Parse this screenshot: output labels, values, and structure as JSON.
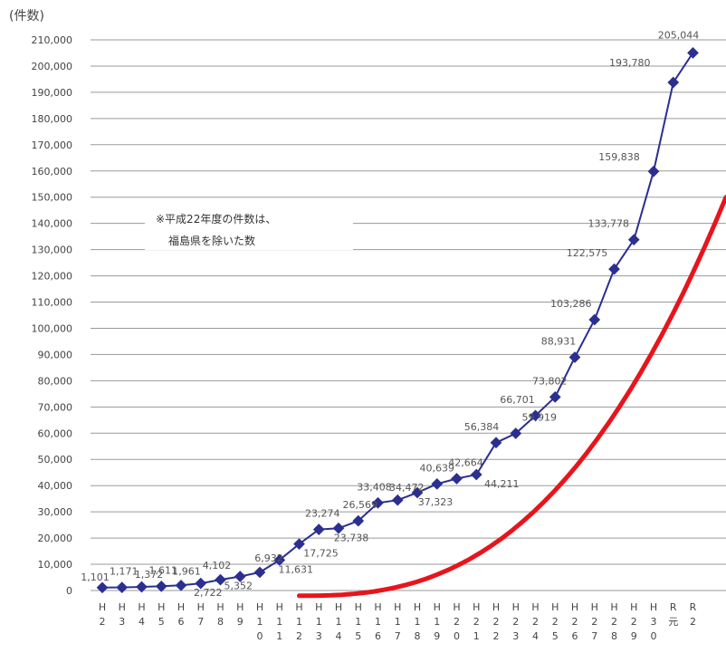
{
  "chart_data": {
    "type": "line",
    "ylabel": "(件数)",
    "ylim": [
      0,
      210000
    ],
    "yticks": [
      0,
      10000,
      20000,
      30000,
      40000,
      50000,
      60000,
      70000,
      80000,
      90000,
      100000,
      110000,
      120000,
      130000,
      140000,
      150000,
      160000,
      170000,
      180000,
      190000,
      200000,
      210000
    ],
    "ytick_labels": [
      "0",
      "10,000",
      "20,000",
      "30,000",
      "40,000",
      "50,000",
      "60,000",
      "70,000",
      "80,000",
      "90,000",
      "100,000",
      "110,000",
      "120,000",
      "130,000",
      "140,000",
      "150,000",
      "160,000",
      "170,000",
      "180,000",
      "190,000",
      "200,000",
      "210,000"
    ],
    "grid": true,
    "categories": [
      [
        "H",
        "2"
      ],
      [
        "H",
        "3"
      ],
      [
        "H",
        "4"
      ],
      [
        "H",
        "5"
      ],
      [
        "H",
        "6"
      ],
      [
        "H",
        "7"
      ],
      [
        "H",
        "8"
      ],
      [
        "H",
        "9"
      ],
      [
        "H",
        "1",
        "0"
      ],
      [
        "H",
        "1",
        "1"
      ],
      [
        "H",
        "1",
        "2"
      ],
      [
        "H",
        "1",
        "3"
      ],
      [
        "H",
        "1",
        "4"
      ],
      [
        "H",
        "1",
        "5"
      ],
      [
        "H",
        "1",
        "6"
      ],
      [
        "H",
        "1",
        "7"
      ],
      [
        "H",
        "1",
        "8"
      ],
      [
        "H",
        "1",
        "9"
      ],
      [
        "H",
        "2",
        "0"
      ],
      [
        "H",
        "2",
        "1"
      ],
      [
        "H",
        "2",
        "2"
      ],
      [
        "H",
        "2",
        "3"
      ],
      [
        "H",
        "2",
        "4"
      ],
      [
        "H",
        "2",
        "5"
      ],
      [
        "H",
        "2",
        "6"
      ],
      [
        "H",
        "2",
        "7"
      ],
      [
        "H",
        "2",
        "8"
      ],
      [
        "H",
        "2",
        "9"
      ],
      [
        "H",
        "3",
        "0"
      ],
      [
        "R",
        "元"
      ],
      [
        "R",
        "2"
      ]
    ],
    "series": [
      {
        "color": "#2b2f8f",
        "values": [
          1101,
          1171,
          1372,
          1611,
          1961,
          2722,
          4102,
          5352,
          6932,
          11631,
          17725,
          23274,
          23738,
          26569,
          33408,
          34472,
          37323,
          40639,
          42664,
          44211,
          56384,
          59919,
          66701,
          73802,
          88931,
          103286,
          122575,
          133778,
          159838,
          193780,
          205044
        ],
        "labels": [
          "1,101",
          "1,171",
          "1,372",
          "1,611",
          "1,961",
          "2,722",
          "4,102",
          "5,352",
          "6,932",
          "11,631",
          "17,725",
          "23,274",
          "23,738",
          "26,569",
          "33,408",
          "34,472",
          "37,323",
          "40,639",
          "42,664",
          "44,211",
          "56,384",
          "59,919",
          "66,701",
          "73,802",
          "88,931",
          "103,286",
          "122,575",
          "133,778",
          "159,838",
          "193,780",
          "205,044"
        ]
      }
    ],
    "annotation_lines": [
      "※平成22年度の件数は、",
      "福島県を除いた数"
    ],
    "overlay": {
      "color": "#e8141c"
    }
  }
}
